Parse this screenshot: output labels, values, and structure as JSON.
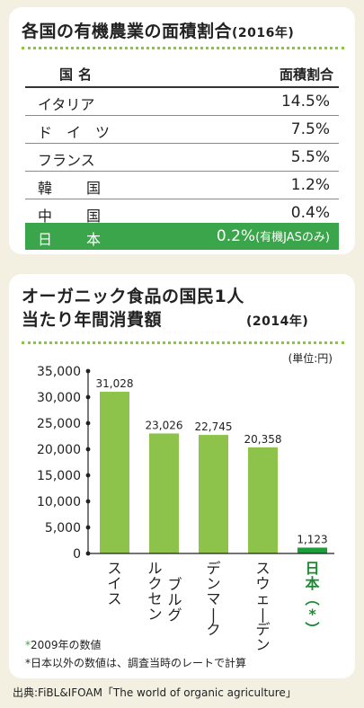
{
  "table": {
    "title": "各国の有機農業の面積割合",
    "year": "(2016年)",
    "header": {
      "country": "国名",
      "share": "面積割合"
    },
    "rows": [
      {
        "name": "イタリア",
        "value": "14.5%"
      },
      {
        "name": "ドイツ",
        "value": "7.5%"
      },
      {
        "name": "フランス",
        "value": "5.5%"
      },
      {
        "name": "韓国",
        "value": "1.2%"
      },
      {
        "name": "中国",
        "value": "0.4%"
      }
    ],
    "highlight": {
      "name": "日本",
      "value": "0.2%",
      "note": "(有機JASのみ)"
    }
  },
  "chart_data": {
    "type": "bar",
    "title": "オーガニック食品の国民1人当たり年間消費額",
    "year": "(2014年)",
    "unit": "(単位:円)",
    "categories": [
      "スイス",
      "ルクセンブルグ",
      "デンマーク",
      "スウェーデン",
      "日本(*)"
    ],
    "values": [
      31028,
      23026,
      22745,
      20358,
      1123
    ],
    "value_labels": [
      "31,028",
      "23,026",
      "22,745",
      "20,358",
      "1,123"
    ],
    "y_ticks": [
      "35,000",
      "30,000",
      "25,000",
      "20,000",
      "15,000",
      "10,000",
      "5,000",
      "0"
    ],
    "ylim": [
      0,
      35000
    ],
    "colors": {
      "bar": "#8dc34a",
      "highlight_bar": "#1e9e3a",
      "highlight_text": "#1e8a34"
    }
  },
  "footnotes": {
    "n1": "2009年の数値",
    "n2": "日本以外の数値は、調査当時のレートで計算"
  },
  "source": "出典:FiBL&IFOAM「The world of organic agriculture」"
}
